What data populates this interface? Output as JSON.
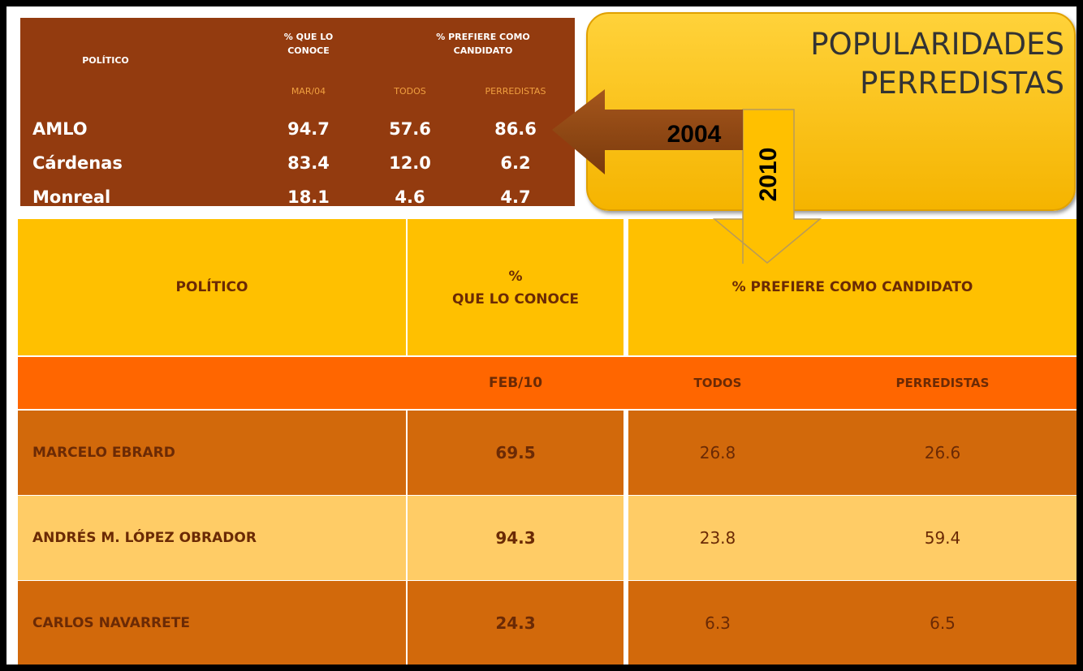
{
  "title": [
    "POPULARIDADES",
    "PERREDISTAS"
  ],
  "arrows": {
    "left": "2004",
    "down": "2010"
  },
  "top_table": {
    "headers": [
      "POLÍTICO",
      [
        "% QUE LO",
        "CONOCE"
      ],
      [
        "% PREFIERE COMO",
        "CANDIDATO"
      ]
    ],
    "subheaders": [
      "MAR/04",
      "TODOS",
      "PERREDISTAS"
    ],
    "rows": [
      [
        "AMLO",
        "94.7",
        "57.6",
        "86.6"
      ],
      [
        "Cárdenas",
        "83.4",
        "12.0",
        "6.2"
      ],
      [
        "Monreal",
        "18.1",
        "4.6",
        "4.7"
      ]
    ]
  },
  "bottom_table": {
    "headers": [
      "POLÍTICO",
      [
        "%",
        "QUE LO CONOCE"
      ],
      "% PREFIERE COMO CANDIDATO"
    ],
    "subheaders": [
      "FEB/10",
      "TODOS",
      "PERREDISTAS"
    ],
    "rows": [
      [
        "MARCELO EBRARD",
        "69.5",
        "26.8",
        "26.6"
      ],
      [
        "ANDRÉS M. LÓPEZ OBRADOR",
        "94.3",
        "23.8",
        "59.4"
      ],
      [
        "CARLOS NAVARRETE",
        "24.3",
        "6.3",
        "6.5"
      ]
    ]
  }
}
